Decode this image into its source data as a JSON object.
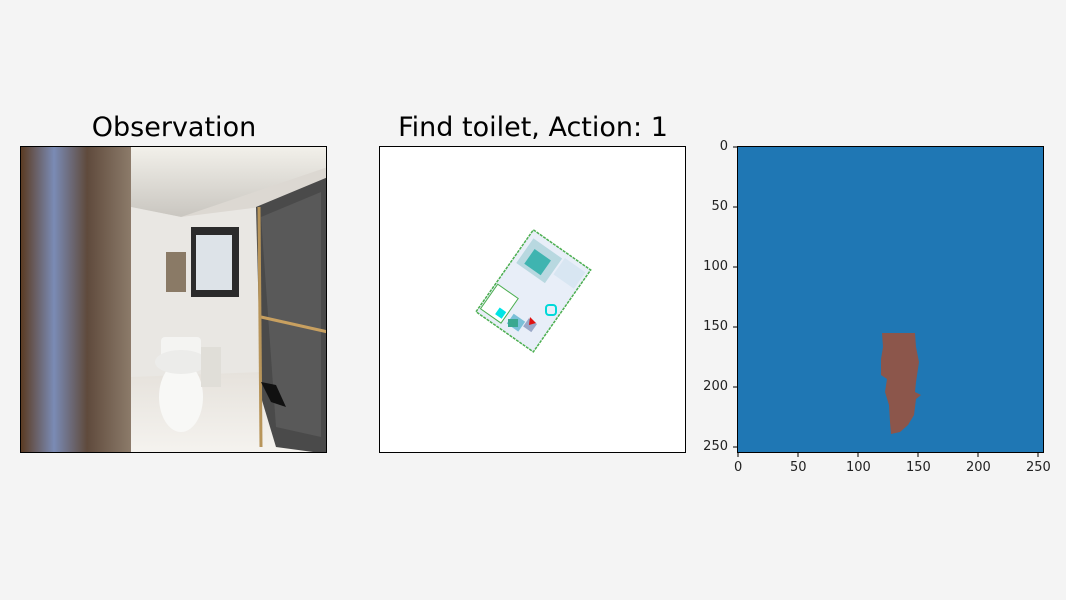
{
  "panels": {
    "observation": {
      "title": "Observation"
    },
    "map": {
      "title": "Find toilet, Action: 1"
    },
    "mask": {
      "y_ticks": [
        "0",
        "50",
        "100",
        "150",
        "200",
        "250"
      ],
      "x_ticks": [
        "0",
        "50",
        "100",
        "150",
        "200",
        "250"
      ],
      "range": [
        0,
        256
      ],
      "colors": {
        "background": "#1f77b4",
        "object": "#8c564b"
      }
    }
  }
}
